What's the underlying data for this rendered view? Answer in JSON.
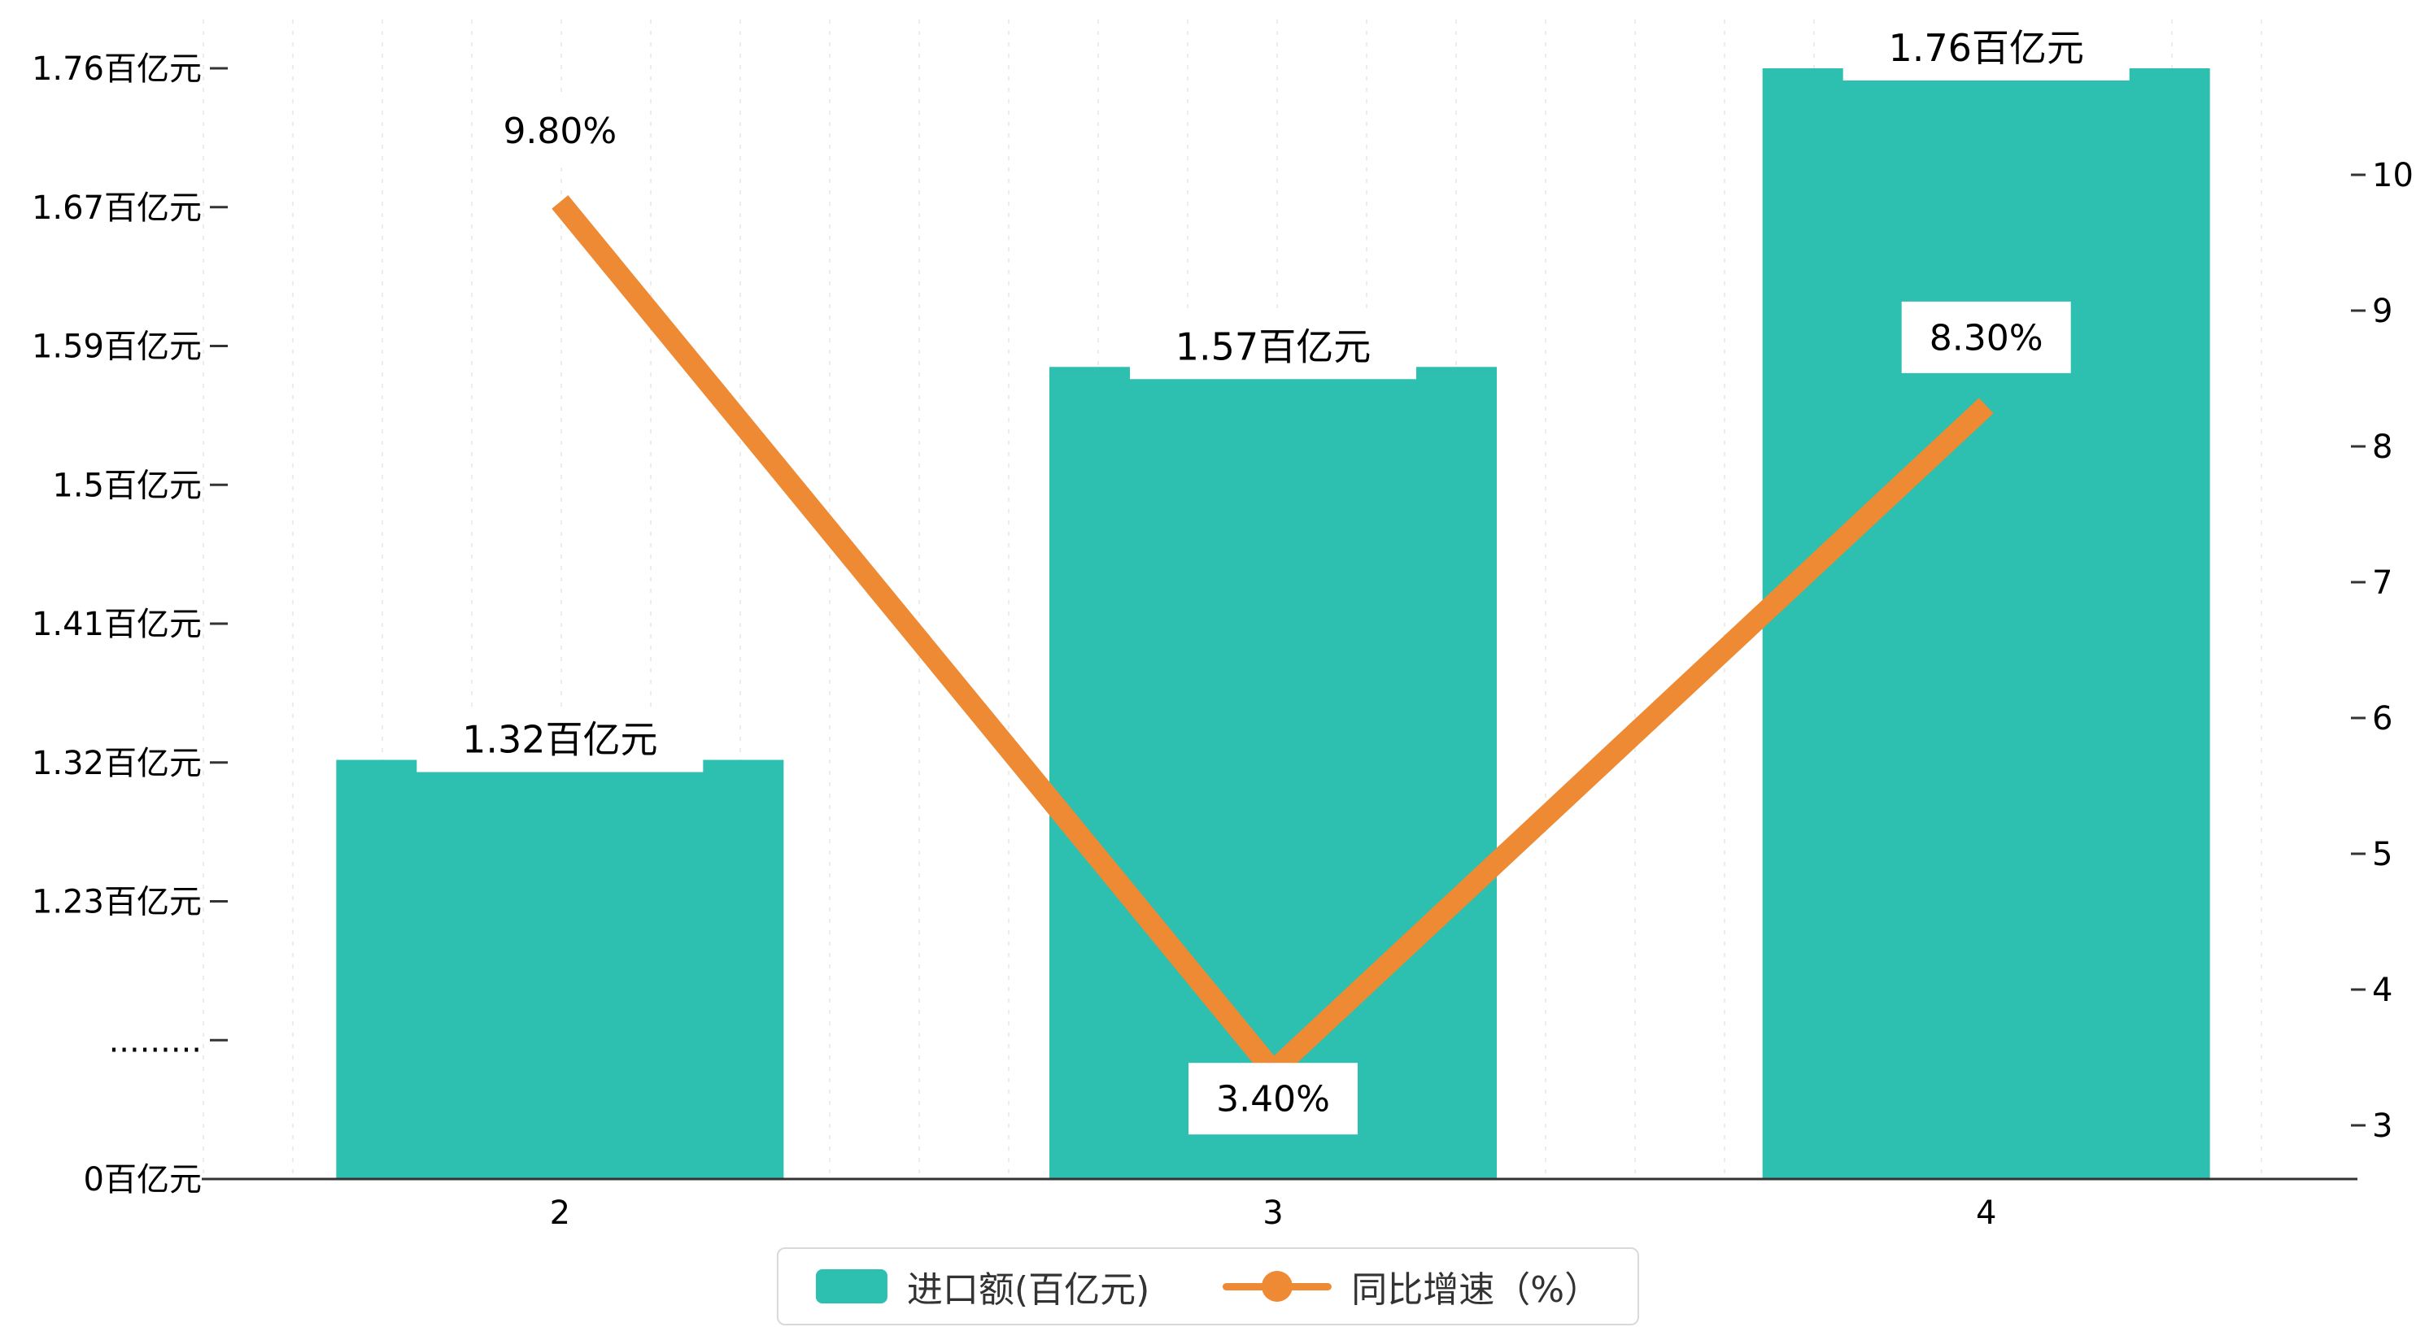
{
  "colors": {
    "bar": "#2DBFAF",
    "line": "#ED8A33",
    "axis": "#333333",
    "grid": "#ececec",
    "label_bg": "#ffffff",
    "text": "#000000"
  },
  "chart_data": {
    "type": "bar+line",
    "title": "",
    "categories": [
      "2",
      "3",
      "4"
    ],
    "series": [
      {
        "name": "进口额(百亿元)",
        "type": "bar",
        "values": [
          1.32,
          1.57,
          1.76
        ],
        "labels": [
          "1.32百亿元",
          "1.57百亿元",
          "1.76百亿元"
        ],
        "axis": "left"
      },
      {
        "name": "同比增速（%）",
        "type": "line",
        "values": [
          9.8,
          3.4,
          8.3
        ],
        "labels": [
          "9.80%",
          "3.40%",
          "8.30%"
        ],
        "axis": "right"
      }
    ],
    "left_axis": {
      "unit": "百亿元",
      "max": 1.76,
      "linear_min": 1.23,
      "linear_ticks": 6,
      "total_ticks": 8,
      "tick_labels_top_to_bottom": [
        "1.76百亿元",
        "1.67百亿元",
        "1.59百亿元",
        "1.5百亿元",
        "1.41百亿元",
        "1.32百亿元",
        "1.23百亿元",
        ".........",
        "0百亿元"
      ],
      "break_marker": "........."
    },
    "right_axis": {
      "min": 3,
      "max": 10,
      "ticks_top_to_bottom": [
        "10",
        "9",
        "8",
        "7",
        "6",
        "5",
        "4",
        "3"
      ]
    },
    "legend": [
      {
        "label": "进口额(百亿元)",
        "swatch": "bar"
      },
      {
        "label": "同比增速（%）",
        "swatch": "line"
      }
    ],
    "grid": "vertical-dashed",
    "legend_position": "bottom-center"
  }
}
